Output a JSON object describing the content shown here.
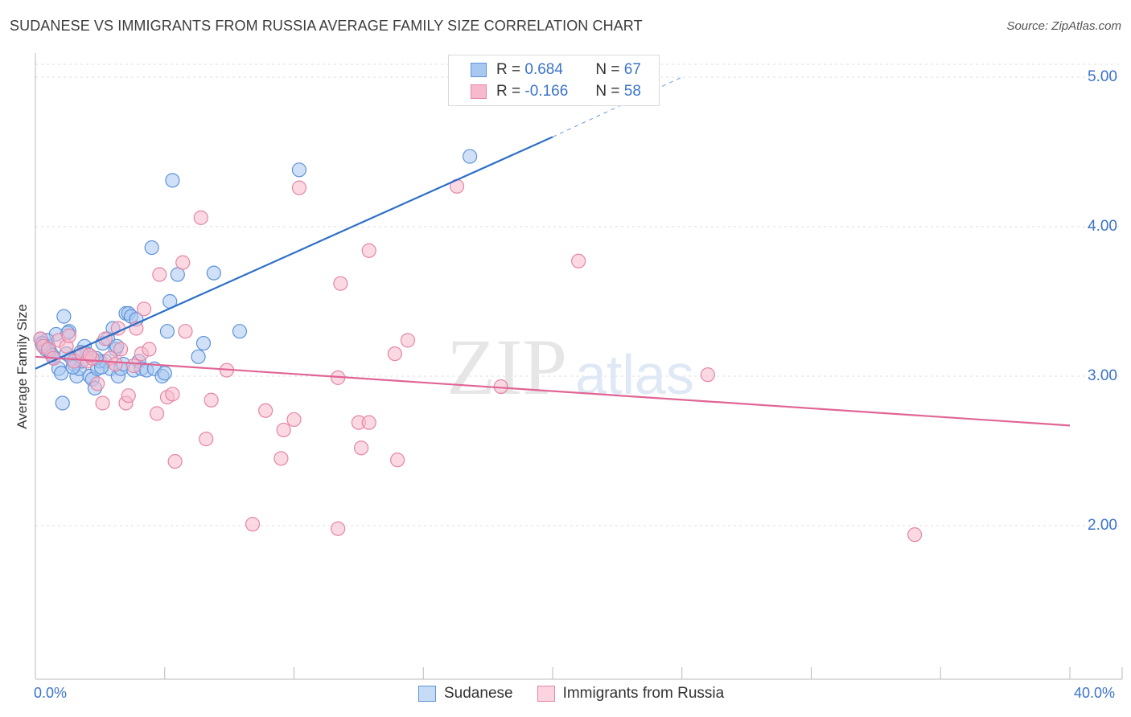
{
  "title": "SUDANESE VS IMMIGRANTS FROM RUSSIA AVERAGE FAMILY SIZE CORRELATION CHART",
  "source": "Source: ZipAtlas.com",
  "watermark": {
    "zip": "ZIP",
    "atlas": "atlas"
  },
  "legend_stats": {
    "row1": {
      "r_label": "R =",
      "r_value": "0.684",
      "n_label": "N =",
      "n_value": "67"
    },
    "row2": {
      "r_label": "R =",
      "r_value": "-0.166",
      "n_label": "N =",
      "n_value": "58"
    }
  },
  "colors": {
    "blue_fill": "#a9c8f0",
    "blue_stroke": "#5e93d9",
    "blue_line": "#2d6fc7",
    "pink_fill": "#f7b9cc",
    "pink_stroke": "#e585a5",
    "pink_line": "#e06595",
    "axis_text": "#3b73c9",
    "grid": "#dddddd"
  },
  "chart_data": {
    "type": "scatter",
    "title": "SUDANESE VS IMMIGRANTS FROM RUSSIA AVERAGE FAMILY SIZE CORRELATION CHART",
    "xlabel": "",
    "ylabel": "Average Family Size",
    "xlim": [
      0,
      40
    ],
    "ylim": [
      1.0,
      5.1
    ],
    "x_tick_labels": [
      "0.0%",
      "40.0%"
    ],
    "y_ticks": [
      2.0,
      3.0,
      4.0,
      5.0
    ],
    "y_tick_labels": [
      "2.00",
      "3.00",
      "4.00",
      "5.00"
    ],
    "grid": true,
    "legend_position": "top-center",
    "series": [
      {
        "name": "Sudanese",
        "color": "#a9c8f0",
        "trend": {
          "x": [
            0,
            20
          ],
          "y": [
            3.05,
            4.6
          ],
          "dashed_extension_to": [
            25,
            5.0
          ]
        },
        "points": [
          [
            0.2,
            3.25
          ],
          [
            0.3,
            3.22
          ],
          [
            0.4,
            3.18
          ],
          [
            0.5,
            3.2
          ],
          [
            0.6,
            3.15
          ],
          [
            0.7,
            3.12
          ],
          [
            0.8,
            3.28
          ],
          [
            0.9,
            3.05
          ],
          [
            1.0,
            3.02
          ],
          [
            1.1,
            3.4
          ],
          [
            1.2,
            3.15
          ],
          [
            1.3,
            3.3
          ],
          [
            1.4,
            3.12
          ],
          [
            1.5,
            3.08
          ],
          [
            1.6,
            3.0
          ],
          [
            1.7,
            3.05
          ],
          [
            1.8,
            3.1
          ],
          [
            1.9,
            3.2
          ],
          [
            2.0,
            3.15
          ],
          [
            2.1,
            3.0
          ],
          [
            2.2,
            2.98
          ],
          [
            2.3,
            2.92
          ],
          [
            2.4,
            3.05
          ],
          [
            2.5,
            3.1
          ],
          [
            2.6,
            3.22
          ],
          [
            2.7,
            3.1
          ],
          [
            2.8,
            3.25
          ],
          [
            2.9,
            3.05
          ],
          [
            3.0,
            3.32
          ],
          [
            3.1,
            3.18
          ],
          [
            3.2,
            3.0
          ],
          [
            3.3,
            3.05
          ],
          [
            3.4,
            3.08
          ],
          [
            3.5,
            3.42
          ],
          [
            3.6,
            3.42
          ],
          [
            3.7,
            3.4
          ],
          [
            3.8,
            3.04
          ],
          [
            3.9,
            3.38
          ],
          [
            4.0,
            3.1
          ],
          [
            4.1,
            3.05
          ],
          [
            4.3,
            3.04
          ],
          [
            4.5,
            3.86
          ],
          [
            4.6,
            3.05
          ],
          [
            4.9,
            3.0
          ],
          [
            5.0,
            3.02
          ],
          [
            5.1,
            3.3
          ],
          [
            5.2,
            3.5
          ],
          [
            5.3,
            4.31
          ],
          [
            5.5,
            3.68
          ],
          [
            6.3,
            3.13
          ],
          [
            6.5,
            3.22
          ],
          [
            6.9,
            3.69
          ],
          [
            7.9,
            3.3
          ],
          [
            10.2,
            4.38
          ],
          [
            16.8,
            4.47
          ],
          [
            1.05,
            2.82
          ],
          [
            0.35,
            3.2
          ],
          [
            0.45,
            3.24
          ],
          [
            0.55,
            3.17
          ],
          [
            1.25,
            3.29
          ],
          [
            1.45,
            3.06
          ],
          [
            1.75,
            3.16
          ],
          [
            2.35,
            3.12
          ],
          [
            2.55,
            3.06
          ],
          [
            3.15,
            3.2
          ],
          [
            0.25,
            3.22
          ],
          [
            0.65,
            3.14
          ]
        ]
      },
      {
        "name": "Immigrants from Russia",
        "color": "#f7b9cc",
        "trend": {
          "x": [
            0,
            40
          ],
          "y": [
            3.13,
            2.67
          ]
        },
        "points": [
          [
            0.2,
            3.25
          ],
          [
            0.3,
            3.2
          ],
          [
            0.5,
            3.18
          ],
          [
            0.7,
            3.12
          ],
          [
            0.9,
            3.24
          ],
          [
            1.2,
            3.2
          ],
          [
            1.5,
            3.1
          ],
          [
            1.8,
            3.15
          ],
          [
            2.0,
            3.1
          ],
          [
            2.2,
            3.12
          ],
          [
            2.4,
            2.95
          ],
          [
            2.6,
            2.82
          ],
          [
            2.7,
            3.25
          ],
          [
            2.9,
            3.12
          ],
          [
            3.1,
            3.08
          ],
          [
            3.2,
            3.32
          ],
          [
            3.3,
            3.18
          ],
          [
            3.5,
            2.82
          ],
          [
            3.6,
            2.87
          ],
          [
            3.8,
            3.07
          ],
          [
            3.9,
            3.32
          ],
          [
            4.1,
            3.15
          ],
          [
            4.2,
            3.45
          ],
          [
            4.4,
            3.18
          ],
          [
            4.7,
            2.75
          ],
          [
            4.8,
            3.68
          ],
          [
            5.1,
            2.86
          ],
          [
            5.3,
            2.88
          ],
          [
            5.4,
            2.43
          ],
          [
            5.7,
            3.76
          ],
          [
            5.8,
            3.3
          ],
          [
            6.4,
            4.06
          ],
          [
            6.6,
            2.58
          ],
          [
            6.8,
            2.84
          ],
          [
            7.4,
            3.04
          ],
          [
            8.4,
            2.01
          ],
          [
            8.9,
            2.77
          ],
          [
            9.5,
            2.45
          ],
          [
            9.6,
            2.64
          ],
          [
            10.0,
            2.71
          ],
          [
            10.2,
            4.26
          ],
          [
            11.7,
            2.99
          ],
          [
            11.7,
            1.98
          ],
          [
            11.8,
            3.62
          ],
          [
            12.5,
            2.69
          ],
          [
            12.6,
            2.52
          ],
          [
            12.9,
            2.69
          ],
          [
            12.9,
            3.84
          ],
          [
            13.9,
            3.15
          ],
          [
            14.0,
            2.44
          ],
          [
            14.4,
            3.24
          ],
          [
            16.3,
            4.27
          ],
          [
            18.0,
            2.93
          ],
          [
            21.0,
            3.77
          ],
          [
            26.0,
            3.01
          ],
          [
            34.0,
            1.94
          ],
          [
            1.3,
            3.27
          ],
          [
            2.1,
            3.14
          ]
        ]
      }
    ]
  },
  "bottom_legend": {
    "sudanese": "Sudanese",
    "russia": "Immigrants from Russia"
  }
}
